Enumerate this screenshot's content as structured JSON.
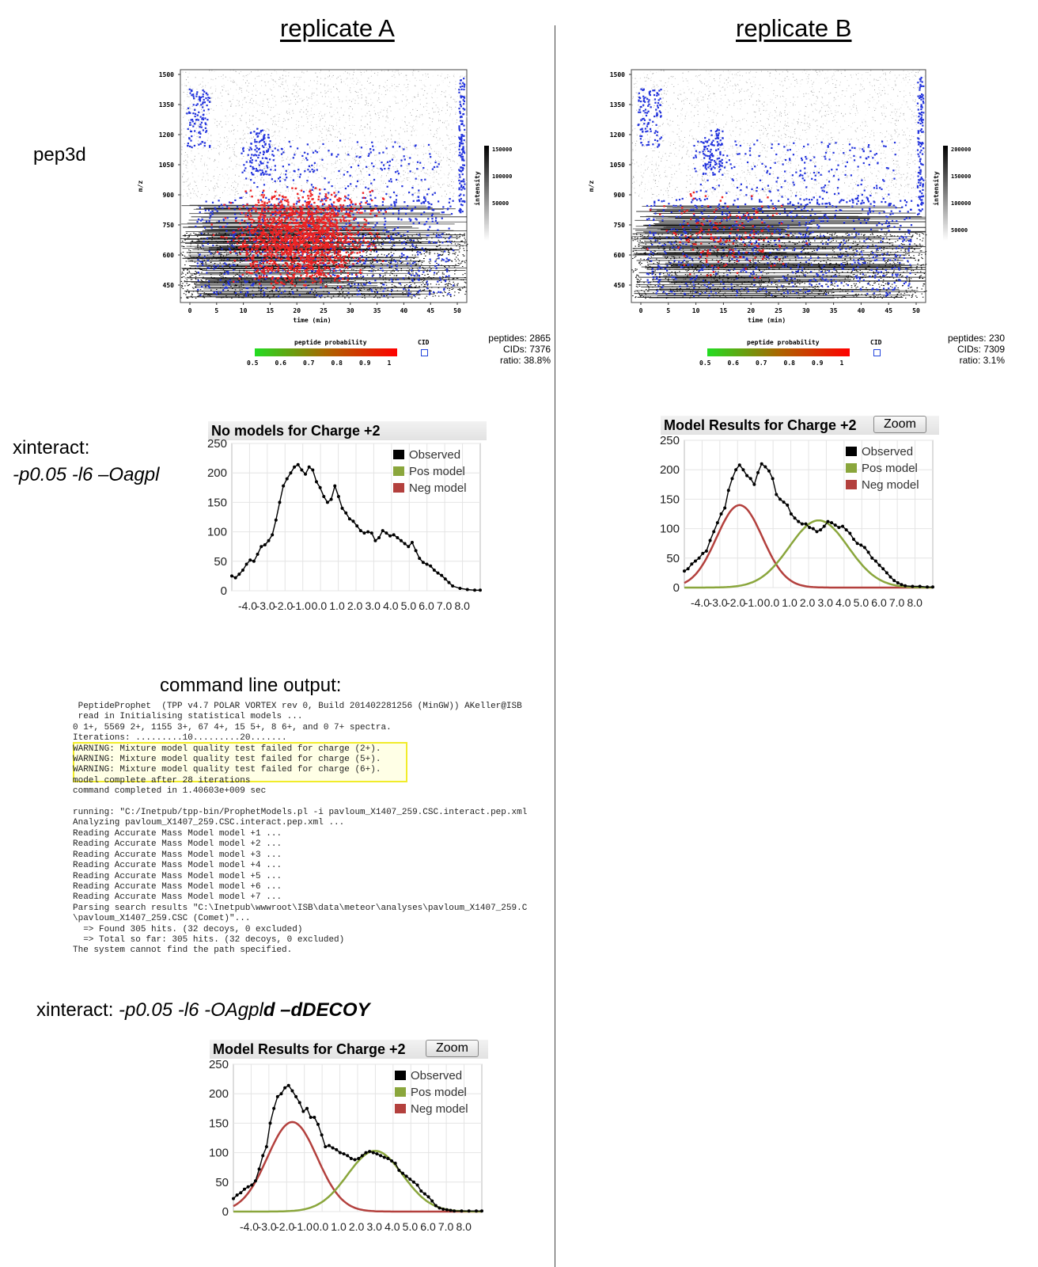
{
  "titles": {
    "left": "replicate A",
    "right": "replicate B"
  },
  "labels": {
    "pep3d": "pep3d",
    "xinteract1_title": "xinteract:",
    "xinteract1_args": "-p0.05 -l6 –Oagpl",
    "command_title": "command line output:",
    "xinteract2_title": "xinteract:",
    "xinteract2_args_a": "-p0.05 -l6 -OAgpl",
    "xinteract2_args_b": "d –dDECOY"
  },
  "colors": {
    "observed": "#000000",
    "pos_model": "#8aa63c",
    "neg_model": "#b3403d",
    "cid": "#2233dd",
    "peptide": "#ee2222"
  },
  "pep3d_A": {
    "y_axis_label": "m/z",
    "x_axis_label": "time (min)",
    "y_ticks": [
      "1500",
      "1350",
      "1200",
      "1050",
      "900",
      "750",
      "600",
      "450"
    ],
    "x_ticks": [
      "0",
      "5",
      "10",
      "15",
      "20",
      "25",
      "30",
      "35",
      "40",
      "45",
      "50"
    ],
    "intensity_label": "intensity",
    "intensity_ticks": [
      "150000",
      "100000",
      "50000"
    ],
    "prob_title": "peptide probability",
    "prob_ticks": [
      "0.5",
      "0.6",
      "0.7",
      "0.8",
      "0.9",
      "1"
    ],
    "cid_label": "CID",
    "stats": {
      "peptides": "peptides: 2865",
      "cids": "CIDs: 7376",
      "ratio": "ratio: 38.8%"
    }
  },
  "pep3d_B": {
    "y_axis_label": "m/z",
    "x_axis_label": "time (min)",
    "y_ticks": [
      "1500",
      "1350",
      "1200",
      "1050",
      "900",
      "750",
      "600",
      "450"
    ],
    "x_ticks": [
      "0",
      "5",
      "10",
      "15",
      "20",
      "25",
      "30",
      "35",
      "40",
      "45",
      "50"
    ],
    "intensity_label": "intensity",
    "intensity_ticks": [
      "200000",
      "150000",
      "100000",
      "50000"
    ],
    "prob_title": "peptide probability",
    "prob_ticks": [
      "0.5",
      "0.6",
      "0.7",
      "0.8",
      "0.9",
      "1"
    ],
    "cid_label": "CID",
    "stats": {
      "peptides": "peptides: 230",
      "cids": "CIDs: 7309",
      "ratio": "ratio: 3.1%"
    }
  },
  "chart_data": [
    {
      "type": "line",
      "title": "No models for Charge +2",
      "x_tick_labels": [
        "-4.0",
        "-3.0",
        "-2.0",
        "-1.0",
        "0.0",
        "1.0",
        "2.0",
        "3.0",
        "4.0",
        "5.0",
        "6.0",
        "7.0",
        "8.0"
      ],
      "ylim": [
        0,
        250
      ],
      "y_ticks": [
        0,
        50,
        100,
        150,
        200,
        250
      ],
      "xlim": [
        -5,
        8.5
      ],
      "legend": [
        "Observed",
        "Pos model",
        "Neg model"
      ],
      "legend_position": "top-right",
      "grid": true,
      "series": [
        {
          "name": "Observed",
          "x": [
            -5,
            -4.8,
            -4.6,
            -4.4,
            -4.2,
            -4.0,
            -3.8,
            -3.6,
            -3.4,
            -3.2,
            -3.0,
            -2.8,
            -2.6,
            -2.4,
            -2.2,
            -2.0,
            -1.8,
            -1.6,
            -1.4,
            -1.2,
            -1.0,
            -0.8,
            -0.6,
            -0.4,
            -0.2,
            0.0,
            0.2,
            0.4,
            0.6,
            0.8,
            1.0,
            1.2,
            1.4,
            1.6,
            1.8,
            2.0,
            2.2,
            2.4,
            2.6,
            2.8,
            3.0,
            3.2,
            3.4,
            3.6,
            3.8,
            4.0,
            4.2,
            4.4,
            4.6,
            4.8,
            5.0,
            5.2,
            5.4,
            5.6,
            5.8,
            6.0,
            6.2,
            6.4,
            6.6,
            6.8,
            7.0,
            7.4,
            7.8,
            8.2,
            8.5
          ],
          "y": [
            25,
            22,
            28,
            35,
            45,
            52,
            50,
            62,
            75,
            78,
            85,
            95,
            120,
            150,
            178,
            190,
            200,
            210,
            214,
            205,
            198,
            210,
            205,
            185,
            175,
            160,
            150,
            155,
            178,
            160,
            140,
            132,
            122,
            118,
            110,
            102,
            98,
            100,
            98,
            85,
            90,
            102,
            98,
            93,
            95,
            90,
            85,
            80,
            75,
            82,
            68,
            55,
            48,
            45,
            42,
            35,
            30,
            26,
            20,
            14,
            8,
            4,
            2,
            1,
            1
          ]
        },
        {
          "name": "Pos model",
          "x": [],
          "y": []
        },
        {
          "name": "Neg model",
          "x": [],
          "y": []
        }
      ]
    },
    {
      "type": "line",
      "title": "Model Results for Charge +2",
      "button": "Zoom",
      "x_tick_labels": [
        "-4.0",
        "-3.0",
        "-2.0",
        "-1.0",
        "0.0",
        "1.0",
        "2.0",
        "3.0",
        "4.0",
        "5.0",
        "6.0",
        "7.0",
        "8.0"
      ],
      "ylim": [
        0,
        250
      ],
      "y_ticks": [
        0,
        50,
        100,
        150,
        200,
        250
      ],
      "xlim": [
        -5,
        8.5
      ],
      "legend": [
        "Observed",
        "Pos model",
        "Neg model"
      ],
      "legend_position": "top-right",
      "grid": true,
      "series": [
        {
          "name": "Observed",
          "x": [
            -5,
            -4.8,
            -4.6,
            -4.4,
            -4.2,
            -4.0,
            -3.8,
            -3.6,
            -3.4,
            -3.2,
            -3.0,
            -2.8,
            -2.6,
            -2.4,
            -2.2,
            -2.0,
            -1.8,
            -1.6,
            -1.4,
            -1.2,
            -1.0,
            -0.8,
            -0.6,
            -0.4,
            -0.2,
            0.0,
            0.2,
            0.4,
            0.6,
            0.8,
            1.0,
            1.2,
            1.4,
            1.6,
            1.8,
            2.0,
            2.2,
            2.4,
            2.6,
            2.8,
            3.0,
            3.2,
            3.4,
            3.6,
            3.8,
            4.0,
            4.2,
            4.4,
            4.6,
            4.8,
            5.0,
            5.2,
            5.4,
            5.6,
            5.8,
            6.0,
            6.2,
            6.4,
            6.6,
            6.8,
            7.0,
            7.4,
            7.8,
            8.2,
            8.5
          ],
          "y": [
            28,
            32,
            40,
            45,
            50,
            58,
            62,
            80,
            95,
            110,
            125,
            135,
            165,
            185,
            200,
            208,
            200,
            190,
            185,
            175,
            195,
            210,
            205,
            198,
            185,
            158,
            150,
            145,
            140,
            125,
            118,
            112,
            108,
            108,
            102,
            100,
            95,
            98,
            104,
            112,
            110,
            106,
            102,
            104,
            98,
            92,
            82,
            75,
            72,
            68,
            60,
            50,
            45,
            38,
            32,
            25,
            18,
            12,
            8,
            5,
            3,
            2,
            2,
            1,
            1
          ]
        },
        {
          "name": "Pos model",
          "mean": 2.3,
          "sd": 1.6,
          "peak": 114
        },
        {
          "name": "Neg model",
          "mean": -2.0,
          "sd": 1.25,
          "peak": 140
        }
      ]
    },
    {
      "type": "line",
      "title": "Model Results for Charge +2",
      "button": "Zoom",
      "x_tick_labels": [
        "-4.0",
        "-3.0",
        "-2.0",
        "-1.0",
        "0.0",
        "1.0",
        "2.0",
        "3.0",
        "4.0",
        "5.0",
        "6.0",
        "7.0",
        "8.0"
      ],
      "ylim": [
        0,
        250
      ],
      "y_ticks": [
        0,
        50,
        100,
        150,
        200,
        250
      ],
      "xlim": [
        -5,
        8.5
      ],
      "legend": [
        "Observed",
        "Pos model",
        "Neg model"
      ],
      "legend_position": "top-right",
      "grid": true,
      "series": [
        {
          "name": "Observed",
          "x": [
            -5,
            -4.8,
            -4.6,
            -4.4,
            -4.2,
            -4.0,
            -3.8,
            -3.6,
            -3.4,
            -3.2,
            -3.0,
            -2.8,
            -2.6,
            -2.4,
            -2.2,
            -2.0,
            -1.8,
            -1.6,
            -1.4,
            -1.2,
            -1.0,
            -0.8,
            -0.6,
            -0.4,
            -0.2,
            0.0,
            0.2,
            0.4,
            0.6,
            0.8,
            1.0,
            1.2,
            1.4,
            1.6,
            1.8,
            2.0,
            2.2,
            2.4,
            2.6,
            2.8,
            3.0,
            3.2,
            3.4,
            3.6,
            3.8,
            4.0,
            4.2,
            4.4,
            4.6,
            4.8,
            5.0,
            5.2,
            5.4,
            5.6,
            5.8,
            6.0,
            6.2,
            6.4,
            6.6,
            6.8,
            7.0,
            7.4,
            7.8,
            8.2,
            8.5
          ],
          "y": [
            22,
            28,
            32,
            38,
            42,
            45,
            52,
            72,
            95,
            110,
            150,
            175,
            195,
            200,
            210,
            214,
            205,
            195,
            185,
            170,
            175,
            160,
            160,
            148,
            130,
            110,
            112,
            108,
            105,
            100,
            98,
            95,
            90,
            88,
            90,
            95,
            100,
            102,
            100,
            98,
            95,
            92,
            90,
            86,
            82,
            70,
            65,
            60,
            55,
            50,
            45,
            35,
            30,
            25,
            18,
            10,
            6,
            4,
            3,
            2,
            1,
            1,
            1,
            1,
            1
          ]
        },
        {
          "name": "Pos model",
          "mean": 2.7,
          "sd": 1.5,
          "peak": 103
        },
        {
          "name": "Neg model",
          "mean": -1.8,
          "sd": 1.35,
          "peak": 152
        }
      ]
    }
  ],
  "command_output": {
    "lines": [
      " PeptideProphet  (TPP v4.7 POLAR VORTEX rev 0, Build 201402281256 (MinGW)) AKeller@ISB",
      " read in Initialising statistical models ...",
      "0 1+, 5569 2+, 1155 3+, 67 4+, 15 5+, 8 6+, and 0 7+ spectra.",
      "Iterations: .........10.........20.......",
      "WARNING: Mixture model quality test failed for charge (2+).",
      "WARNING: Mixture model quality test failed for charge (5+).",
      "WARNING: Mixture model quality test failed for charge (6+).",
      "model complete after 28 iterations",
      "command completed in 1.40603e+009 sec",
      "",
      "running: \"C:/Inetpub/tpp-bin/ProphetModels.pl -i pavloum_X1407_259.CSC.interact.pep.xml",
      "Analyzing pavloum_X1407_259.CSC.interact.pep.xml ...",
      "Reading Accurate Mass Model model +1 ...",
      "Reading Accurate Mass Model model +2 ...",
      "Reading Accurate Mass Model model +3 ...",
      "Reading Accurate Mass Model model +4 ...",
      "Reading Accurate Mass Model model +5 ...",
      "Reading Accurate Mass Model model +6 ...",
      "Reading Accurate Mass Model model +7 ...",
      "Parsing search results \"C:\\Inetpub\\wwwroot\\ISB\\data\\meteor\\analyses\\pavloum_X1407_259.C",
      "\\pavloum_X1407_259.CSC (Comet)\"...",
      "  => Found 305 hits. (32 decoys, 0 excluded)",
      "  => Total so far: 305 hits. (32 decoys, 0 excluded)",
      "The system cannot find the path specified."
    ]
  }
}
